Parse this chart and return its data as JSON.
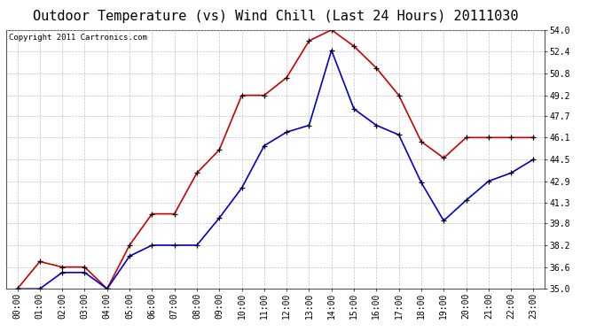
{
  "title": "Outdoor Temperature (vs) Wind Chill (Last 24 Hours) 20111030",
  "copyright": "Copyright 2011 Cartronics.com",
  "hours": [
    "00:00",
    "01:00",
    "02:00",
    "03:00",
    "04:00",
    "05:00",
    "06:00",
    "07:00",
    "08:00",
    "09:00",
    "10:00",
    "11:00",
    "12:00",
    "13:00",
    "14:00",
    "15:00",
    "16:00",
    "17:00",
    "18:00",
    "19:00",
    "20:00",
    "21:00",
    "22:00",
    "23:00"
  ],
  "temp": [
    35.0,
    37.0,
    36.6,
    36.6,
    35.0,
    38.2,
    40.5,
    40.5,
    43.5,
    45.2,
    49.2,
    49.2,
    50.5,
    53.2,
    54.0,
    52.8,
    51.2,
    49.2,
    45.8,
    44.6,
    46.1,
    46.1,
    46.1,
    46.1
  ],
  "windchill": [
    35.0,
    35.0,
    36.2,
    36.2,
    35.0,
    37.4,
    38.2,
    38.2,
    38.2,
    40.2,
    42.4,
    45.5,
    46.5,
    47.0,
    52.5,
    48.2,
    47.0,
    46.3,
    42.8,
    40.0,
    41.5,
    42.9,
    43.5,
    44.5
  ],
  "temp_color": "#cc0000",
  "windchill_color": "#0000cc",
  "bg_color": "#ffffff",
  "grid_color": "#bbbbbb",
  "ylim": [
    35.0,
    54.0
  ],
  "yticks": [
    35.0,
    36.6,
    38.2,
    39.8,
    41.3,
    42.9,
    44.5,
    46.1,
    47.7,
    49.2,
    50.8,
    52.4,
    54.0
  ],
  "title_fontsize": 11,
  "copyright_fontsize": 6.5,
  "marker": "+",
  "marker_color": "#000000",
  "marker_size": 4,
  "line_width": 1.2,
  "tick_fontsize": 7
}
